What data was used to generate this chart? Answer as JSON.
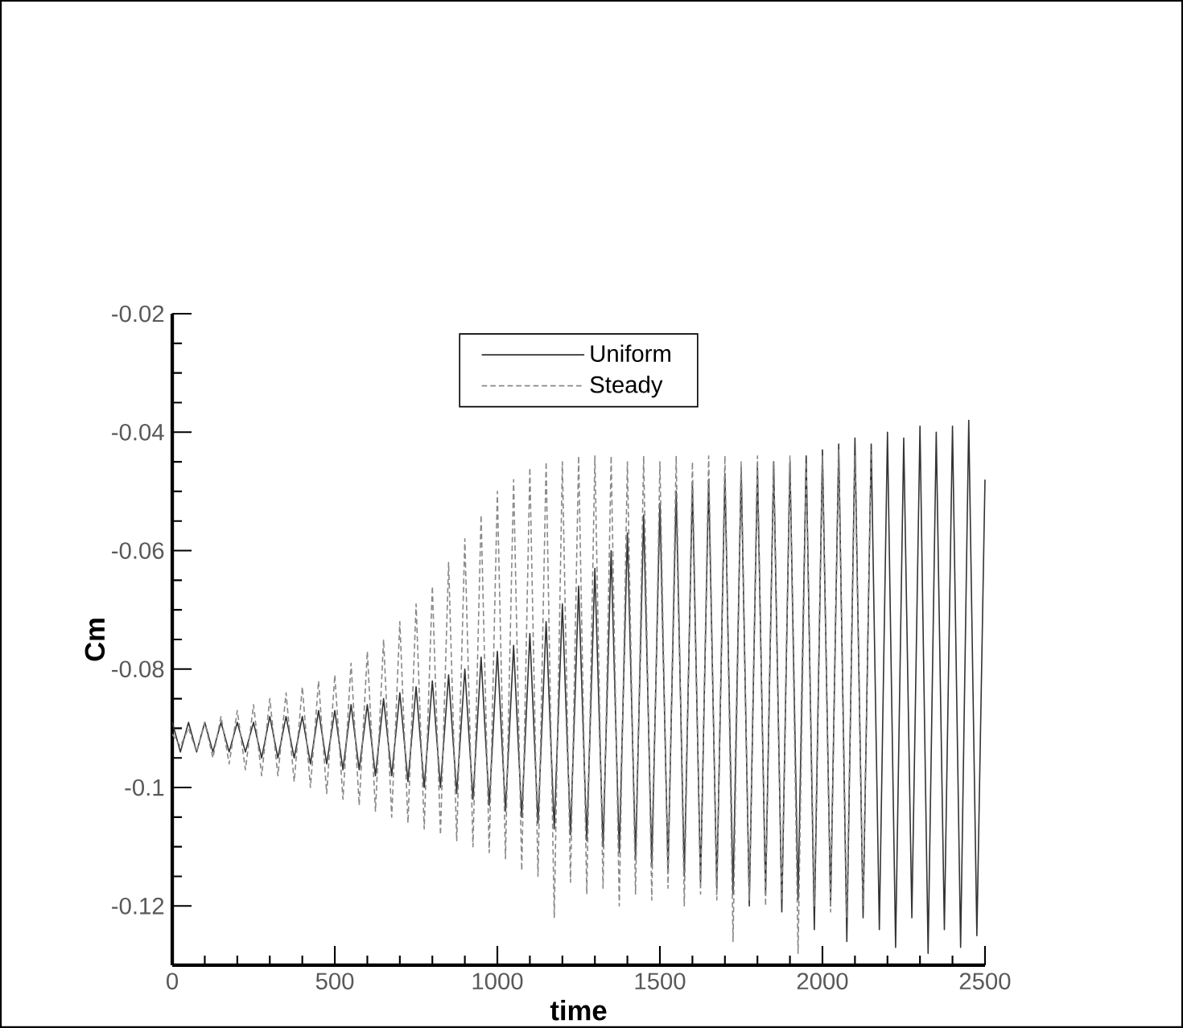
{
  "chart_data": {
    "type": "line",
    "xlabel": "time",
    "ylabel": "Cm",
    "xlim": [
      0,
      2500
    ],
    "ylim": [
      -0.13,
      -0.02
    ],
    "xticks": [
      0,
      500,
      1000,
      1500,
      2000,
      2500
    ],
    "yticks": [
      -0.12,
      -0.1,
      -0.08,
      -0.06,
      -0.04,
      -0.02
    ],
    "legend": "top",
    "grid": false,
    "marker": "none",
    "series": [
      {
        "name": "Uniform",
        "color": "#333333",
        "line_style": "solid",
        "x": [
          0,
          25,
          50,
          75,
          100,
          125,
          150,
          175,
          200,
          225,
          250,
          275,
          300,
          325,
          350,
          375,
          400,
          425,
          450,
          475,
          500,
          525,
          550,
          575,
          600,
          625,
          650,
          675,
          700,
          725,
          750,
          775,
          800,
          825,
          850,
          875,
          900,
          925,
          950,
          975,
          1000,
          1025,
          1050,
          1075,
          1100,
          1125,
          1150,
          1175,
          1200,
          1225,
          1250,
          1275,
          1300,
          1325,
          1350,
          1375,
          1400,
          1425,
          1450,
          1475,
          1500,
          1525,
          1550,
          1575,
          1600,
          1625,
          1650,
          1675,
          1700,
          1725,
          1750,
          1775,
          1800,
          1825,
          1850,
          1875,
          1900,
          1925,
          1950,
          1975,
          2000,
          2025,
          2050,
          2075,
          2100,
          2125,
          2150,
          2175,
          2200,
          2225,
          2250,
          2275,
          2300,
          2325,
          2350,
          2375,
          2400,
          2425,
          2450,
          2475,
          2500
        ],
        "values": [
          -0.089,
          -0.094,
          -0.089,
          -0.094,
          -0.089,
          -0.094,
          -0.089,
          -0.094,
          -0.089,
          -0.094,
          -0.089,
          -0.095,
          -0.088,
          -0.095,
          -0.088,
          -0.095,
          -0.088,
          -0.096,
          -0.087,
          -0.096,
          -0.087,
          -0.097,
          -0.086,
          -0.097,
          -0.086,
          -0.098,
          -0.085,
          -0.098,
          -0.084,
          -0.099,
          -0.083,
          -0.1,
          -0.082,
          -0.1,
          -0.081,
          -0.101,
          -0.08,
          -0.102,
          -0.078,
          -0.103,
          -0.077,
          -0.104,
          -0.076,
          -0.105,
          -0.074,
          -0.106,
          -0.072,
          -0.107,
          -0.069,
          -0.108,
          -0.066,
          -0.109,
          -0.063,
          -0.11,
          -0.06,
          -0.111,
          -0.057,
          -0.112,
          -0.054,
          -0.113,
          -0.052,
          -0.114,
          -0.05,
          -0.115,
          -0.049,
          -0.116,
          -0.048,
          -0.117,
          -0.047,
          -0.118,
          -0.046,
          -0.12,
          -0.046,
          -0.118,
          -0.045,
          -0.121,
          -0.045,
          -0.119,
          -0.044,
          -0.124,
          -0.043,
          -0.12,
          -0.042,
          -0.126,
          -0.041,
          -0.122,
          -0.042,
          -0.124,
          -0.04,
          -0.127,
          -0.041,
          -0.122,
          -0.039,
          -0.128,
          -0.04,
          -0.124,
          -0.039,
          -0.127,
          -0.038,
          -0.125,
          -0.048
        ]
      },
      {
        "name": "Steady",
        "color": "#888888",
        "line_style": "dashed",
        "x": [
          0,
          25,
          50,
          75,
          100,
          125,
          150,
          175,
          200,
          225,
          250,
          275,
          300,
          325,
          350,
          375,
          400,
          425,
          450,
          475,
          500,
          525,
          550,
          575,
          600,
          625,
          650,
          675,
          700,
          725,
          750,
          775,
          800,
          825,
          850,
          875,
          900,
          925,
          950,
          975,
          1000,
          1025,
          1050,
          1075,
          1100,
          1125,
          1150,
          1175,
          1200,
          1225,
          1250,
          1275,
          1300,
          1325,
          1350,
          1375,
          1400,
          1425,
          1450,
          1475,
          1500,
          1525,
          1550,
          1575,
          1600,
          1625,
          1650,
          1675,
          1700,
          1725,
          1750,
          1775,
          1800,
          1825,
          1850,
          1875,
          1900,
          1925,
          1950,
          1975,
          2000,
          2025,
          2050,
          2075,
          2100,
          2125,
          2150
        ],
        "values": [
          -0.091,
          -0.093,
          -0.09,
          -0.094,
          -0.089,
          -0.095,
          -0.088,
          -0.096,
          -0.087,
          -0.097,
          -0.086,
          -0.098,
          -0.085,
          -0.098,
          -0.084,
          -0.099,
          -0.083,
          -0.1,
          -0.082,
          -0.101,
          -0.081,
          -0.102,
          -0.079,
          -0.103,
          -0.077,
          -0.104,
          -0.075,
          -0.105,
          -0.072,
          -0.106,
          -0.069,
          -0.107,
          -0.066,
          -0.108,
          -0.062,
          -0.109,
          -0.058,
          -0.11,
          -0.054,
          -0.111,
          -0.05,
          -0.112,
          -0.048,
          -0.114,
          -0.046,
          -0.115,
          -0.045,
          -0.122,
          -0.045,
          -0.116,
          -0.044,
          -0.118,
          -0.044,
          -0.117,
          -0.044,
          -0.12,
          -0.045,
          -0.118,
          -0.044,
          -0.119,
          -0.045,
          -0.117,
          -0.044,
          -0.12,
          -0.045,
          -0.118,
          -0.044,
          -0.119,
          -0.044,
          -0.126,
          -0.045,
          -0.119,
          -0.044,
          -0.12,
          -0.045,
          -0.119,
          -0.044,
          -0.128,
          -0.045,
          -0.12,
          -0.044,
          -0.121,
          -0.043,
          -0.122,
          -0.044,
          -0.12,
          -0.043
        ]
      }
    ]
  }
}
